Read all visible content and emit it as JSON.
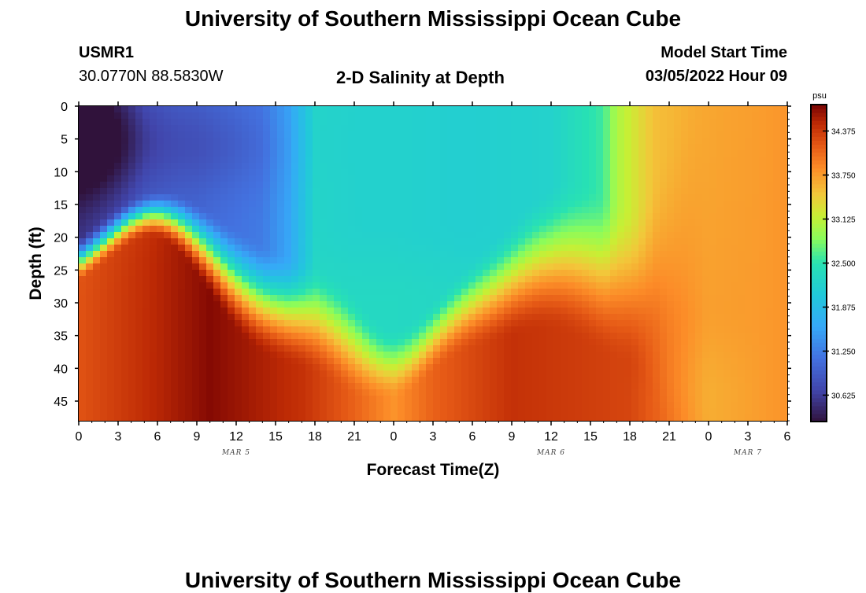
{
  "header": {
    "title": "University of Southern Mississippi Ocean Cube",
    "station_id": "USMR1",
    "station_coords": "30.0770N  88.5830W",
    "subtitle": "2-D Salinity at Depth",
    "model_start_label": "Model Start Time",
    "model_start_value": "03/05/2022 Hour 09"
  },
  "footer": {
    "title": "University of Southern Mississippi Ocean Cube"
  },
  "chart_data": {
    "type": "heatmap",
    "title": "2-D Salinity at Depth",
    "xlabel": "Forecast Time(Z)",
    "ylabel": "Depth (ft)",
    "x_hours_range": [
      0,
      54
    ],
    "y_range": [
      0,
      48
    ],
    "y_ticks": [
      0,
      5,
      10,
      15,
      20,
      25,
      30,
      35,
      40,
      45
    ],
    "x_tick_labels": [
      "0",
      "3",
      "6",
      "9",
      "12",
      "15",
      "18",
      "21",
      "0",
      "3",
      "6",
      "9",
      "12",
      "15",
      "18",
      "21",
      "0",
      "3",
      "6"
    ],
    "date_labels": [
      {
        "label": "MAR 5",
        "at_hour": 12
      },
      {
        "label": "MAR 6",
        "at_hour": 36
      },
      {
        "label": "MAR 7",
        "at_hour": 51
      }
    ],
    "colorbar": {
      "unit": "psu",
      "min": 30.25,
      "max": 34.75,
      "tick_values": [
        30.625,
        31.25,
        31.875,
        32.5,
        33.125,
        33.75,
        34.375
      ],
      "tick_labels": [
        "30.625",
        "31.250",
        "31.875",
        "32.500",
        "33.125",
        "33.750",
        "34.375"
      ]
    }
  }
}
